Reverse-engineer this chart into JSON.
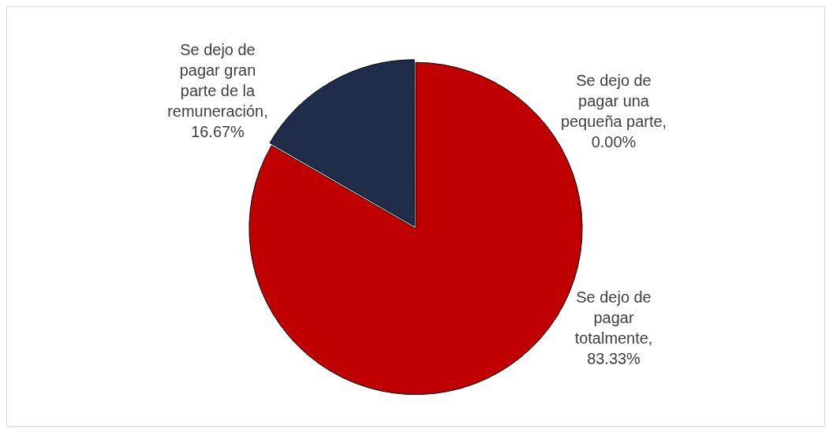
{
  "chart_data": {
    "type": "pie",
    "categories": [
      "Se dejo de pagar una pequeña parte",
      "Se dejo de pagar totalmente",
      "Se dejo de pagar gran parte de la remuneración"
    ],
    "values": [
      0,
      83.33,
      16.67
    ],
    "value_labels": [
      ", 0.00%",
      ", 83.33%",
      ", 16.67%"
    ],
    "colors": [
      "#c00000",
      "#c00000",
      "#1f2d4a"
    ],
    "legend": false
  }
}
